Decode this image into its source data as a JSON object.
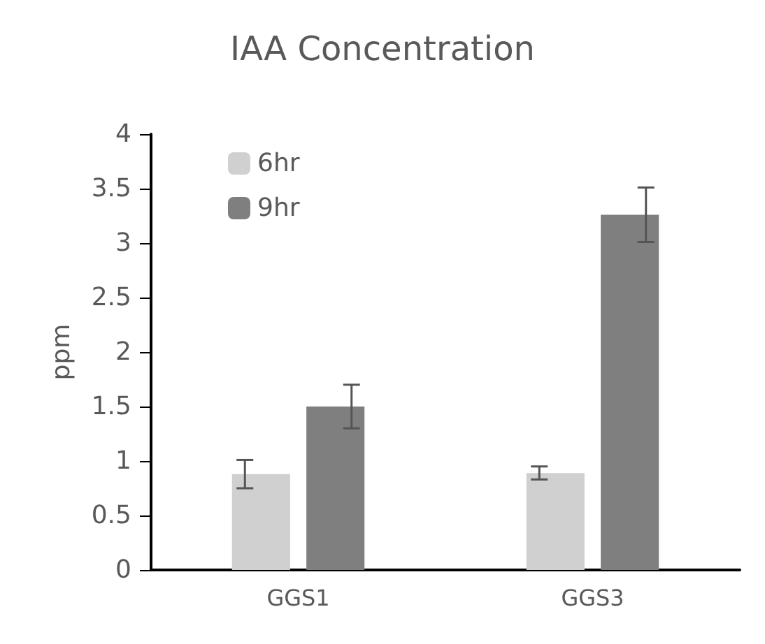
{
  "chart_data": {
    "type": "bar",
    "title": "IAA Concentration",
    "ylabel": "ppm",
    "categories": [
      "GGS1",
      "GGS3"
    ],
    "series": [
      {
        "name": "6hr",
        "color": "#d0d0d0",
        "values": [
          0.88,
          0.89
        ],
        "errors": [
          0.13,
          0.06
        ]
      },
      {
        "name": "9hr",
        "color": "#7f7f7f",
        "values": [
          1.5,
          3.26
        ],
        "errors": [
          0.2,
          0.25
        ]
      }
    ],
    "ylim": [
      0,
      4
    ],
    "yticks": [
      0,
      0.5,
      1,
      1.5,
      2,
      2.5,
      3,
      3.5,
      4
    ],
    "grid": false,
    "legend": "top left"
  }
}
